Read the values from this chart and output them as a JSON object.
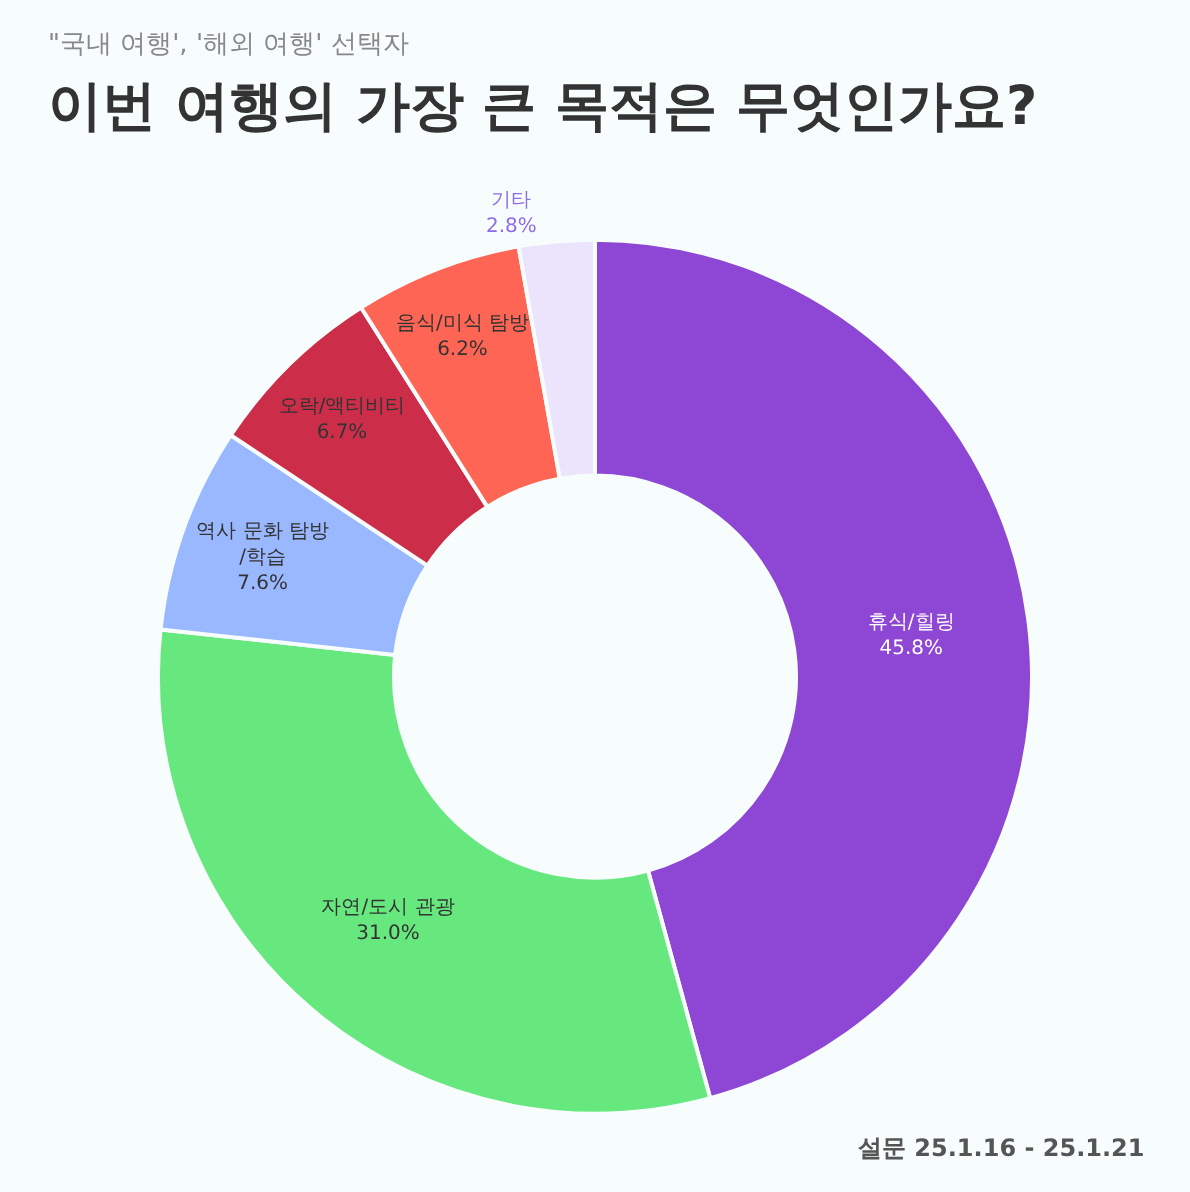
{
  "chart_data": {
    "type": "donut",
    "subtitle": "\"국내 여행', '해외 여행' 선택자",
    "title": "이번 여행의 가장 큰 목적은 무엇인가요?",
    "categories": [
      "휴식/힐링",
      "자연/도시 관광",
      "역사 문화 탐방\n/학습",
      "오락/액티비티",
      "음식/미식 탐방",
      "기타"
    ],
    "values": [
      45.8,
      31.0,
      7.6,
      6.7,
      6.2,
      2.8
    ],
    "value_labels": [
      "45.8%",
      "31.0%",
      "7.6%",
      "6.7%",
      "6.2%",
      "2.8%"
    ],
    "colors": [
      "#8e47d4",
      "#66e87e",
      "#99b8ff",
      "#cc2e4a",
      "#ff6554",
      "#ebe4fc"
    ],
    "annotations": [
      "설문 25.1.16 - 25.1.21"
    ],
    "legend": false
  }
}
